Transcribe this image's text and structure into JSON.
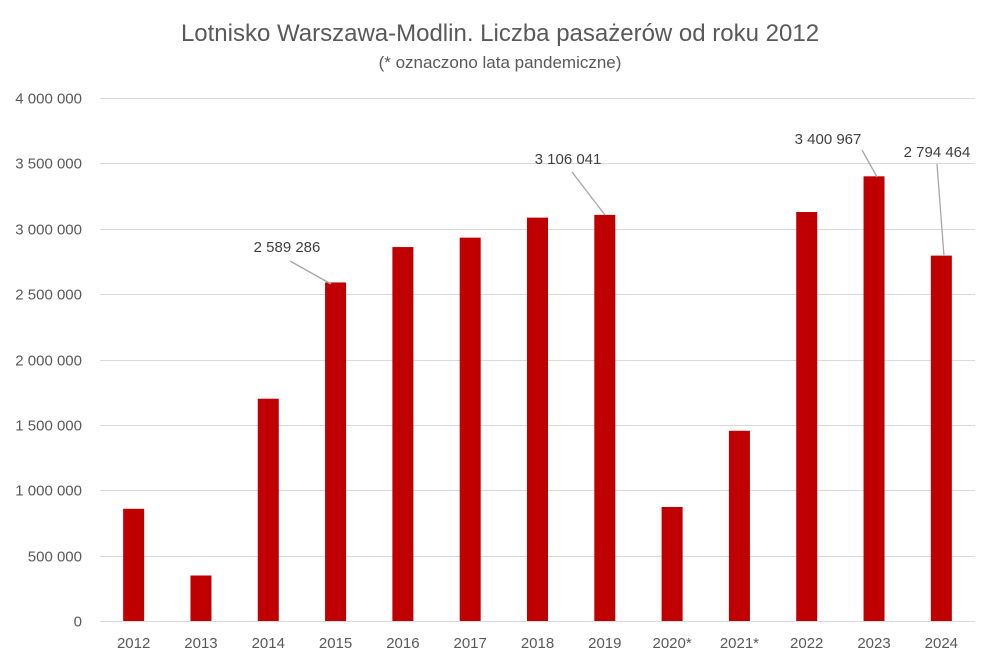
{
  "chart_data": {
    "type": "bar",
    "title": "Lotnisko Warszawa-Modlin. Liczba pasażerów od roku 2012",
    "subtitle": "(* oznaczono lata pandemiczne)",
    "xlabel": "",
    "ylabel": "",
    "categories": [
      "2012",
      "2013",
      "2014",
      "2015",
      "2016",
      "2017",
      "2018",
      "2019",
      "2020*",
      "2021*",
      "2022",
      "2023",
      "2024"
    ],
    "values": [
      858000,
      348000,
      1700000,
      2589286,
      2860000,
      2932000,
      3085000,
      3106041,
      872000,
      1455000,
      3128000,
      3400967,
      2794464
    ],
    "ylim": [
      0,
      4000000
    ],
    "yticks": [
      0,
      500000,
      1000000,
      1500000,
      2000000,
      2500000,
      3000000,
      3500000,
      4000000
    ],
    "ytick_labels": [
      "0",
      "500 000",
      "1 000 000",
      "1 500 000",
      "2 000 000",
      "2 500 000",
      "3 000 000",
      "3 500 000",
      "4 000 000"
    ],
    "data_labels": [
      {
        "category": "2015",
        "text": "2 589 286"
      },
      {
        "category": "2019",
        "text": "3 106 041"
      },
      {
        "category": "2023",
        "text": "3 400 967"
      },
      {
        "category": "2024",
        "text": "2 794 464"
      }
    ],
    "grid": true,
    "legend": "none",
    "colors": {
      "bar": "#c00000",
      "grid": "#d9d9d9",
      "leader": "#a6a6a6",
      "text": "#595959"
    }
  }
}
